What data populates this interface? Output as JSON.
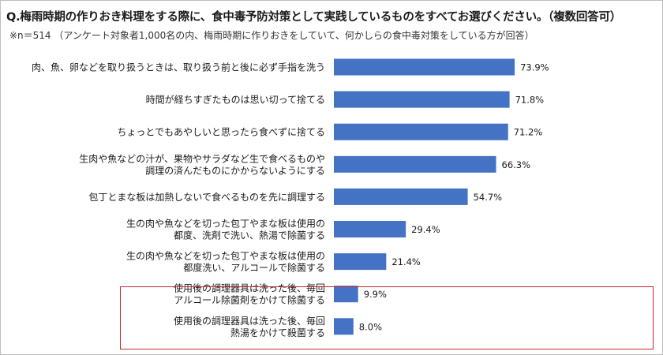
{
  "title": "Q.梅雨時期の作りおき料理をする際に、食中毒予防対策として実践しているものをすべてお選びください。（複数回答可）",
  "subtitle": "※n＝514 （アンケート対象者1,000名の内、梅雨時期に作りおきをしていて、何かしらの食中毒対策をしている方が回答）",
  "colors": {
    "bar": "#4472c4",
    "highlight_border": "#c8282a"
  },
  "chart_data": {
    "type": "bar",
    "orientation": "horizontal",
    "categories": [
      [
        "肉、魚、卵などを取り扱うときは、取り扱う前と後に必ず手指を洗う"
      ],
      [
        "時間が経ちすぎたものは思い切って捨てる"
      ],
      [
        "ちょっとでもあやしいと思ったら食べずに捨てる"
      ],
      [
        "生肉や魚などの汁が、果物やサラダなど生で食べるものや",
        "調理の済んだものにかからないようにする"
      ],
      [
        "包丁とまな板は加熱しないで食べるものを先に調理する"
      ],
      [
        "生の肉や魚などを切った包丁やまな板は使用の",
        "都度、洗剤で洗い、熱湯で除菌する"
      ],
      [
        "生の肉や魚などを切った包丁やまな板は使用の",
        "都度洗い、アルコールで除菌する"
      ],
      [
        "使用後の調理器具は洗った後、毎回",
        "アルコール除菌剤をかけて除菌する"
      ],
      [
        "使用後の調理器具は洗った後、毎回",
        "熱湯をかけて殺菌する"
      ]
    ],
    "values": [
      73.9,
      71.8,
      71.2,
      66.3,
      54.7,
      29.4,
      21.4,
      9.9,
      8.0
    ],
    "value_labels": [
      "73.9%",
      "71.8%",
      "71.2%",
      "66.3%",
      "54.7%",
      "29.4%",
      "21.4%",
      "9.9%",
      "8.0%"
    ],
    "xlim": [
      0,
      100
    ],
    "grid": false,
    "highlighted_categories": [
      7,
      8
    ]
  }
}
